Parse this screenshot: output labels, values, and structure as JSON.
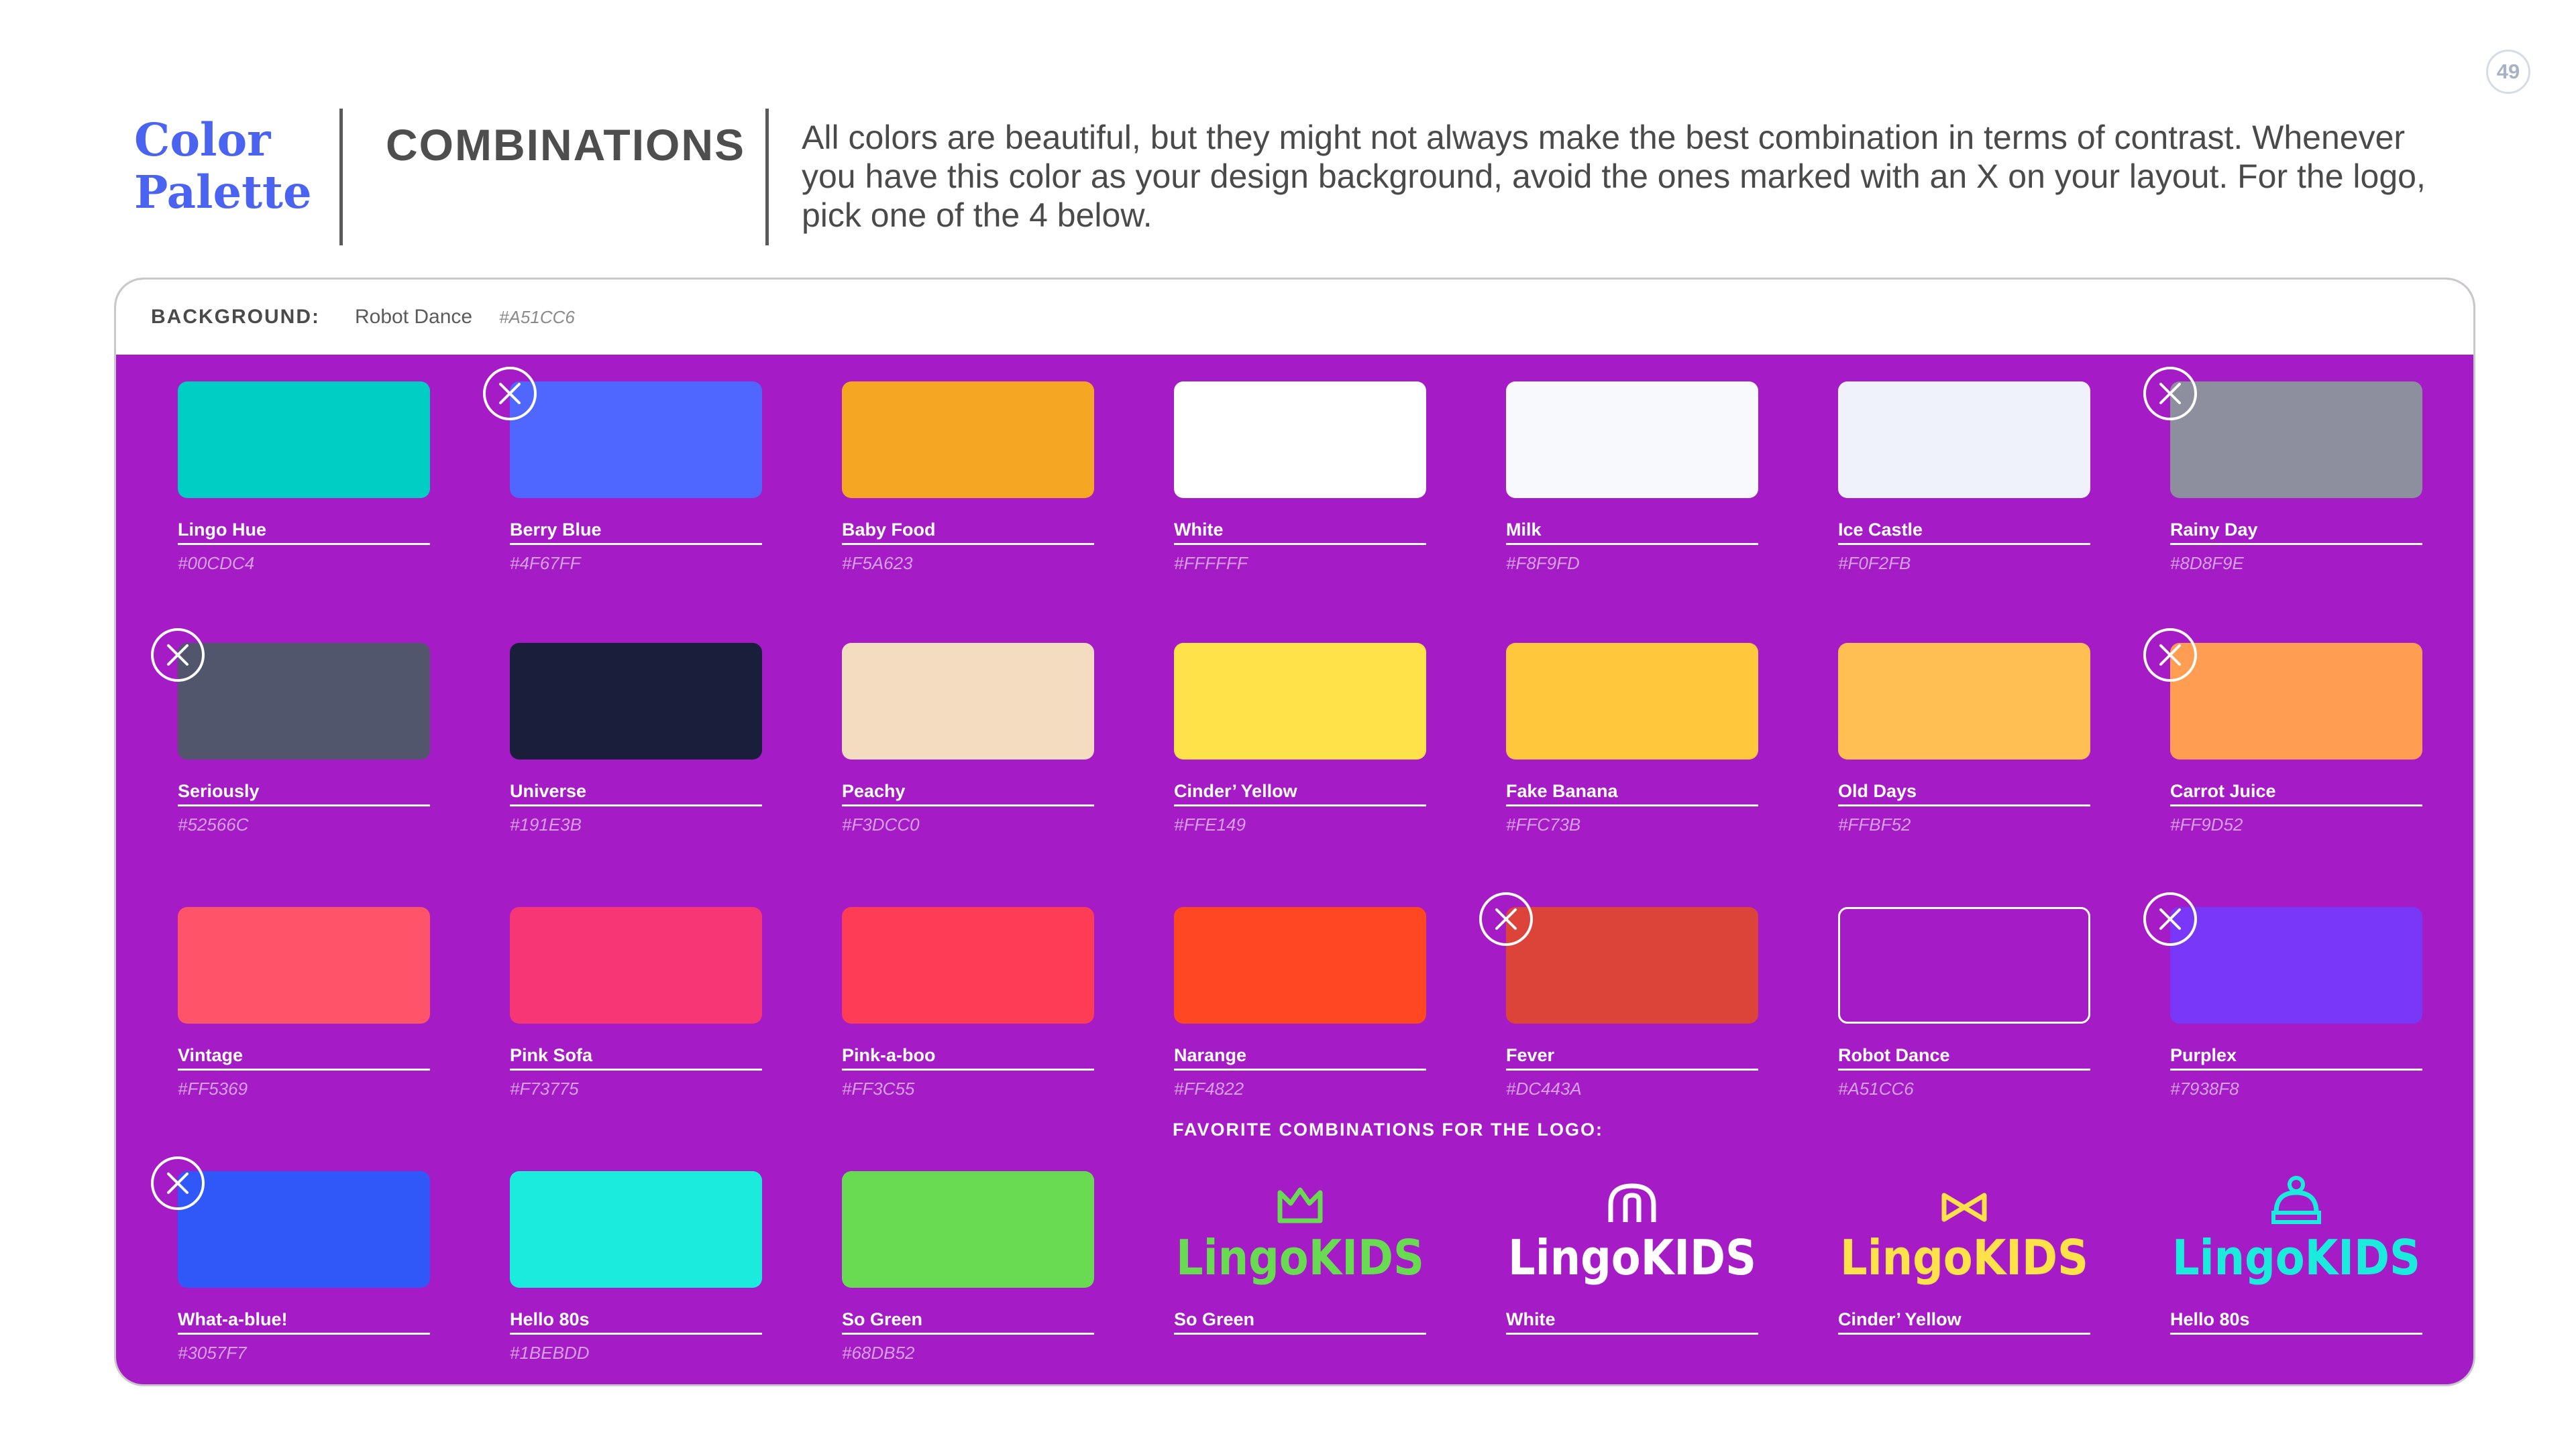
{
  "page_number": "49",
  "section_title": "Color Palette",
  "subtitle": "COMBINATIONS",
  "intro": "All colors are beautiful, but they might not always make the best combination in terms of contrast. Whenever you have this color as your design background, avoid the ones marked with an X on your layout. For the logo, pick one of the 4 below.",
  "background": {
    "label": "BACKGROUND:",
    "name": "Robot Dance",
    "hex": "#A51CC6",
    "color": "#a51cc6"
  },
  "swatches": [
    {
      "name": "Lingo Hue",
      "hex": "#00CDC4",
      "color": "#00cdc4",
      "avoid": false
    },
    {
      "name": "Berry Blue",
      "hex": "#4F67FF",
      "color": "#4f67ff",
      "avoid": true
    },
    {
      "name": "Baby Food",
      "hex": "#F5A623",
      "color": "#f5a623",
      "avoid": false
    },
    {
      "name": "White",
      "hex": "#FFFFFF",
      "color": "#ffffff",
      "avoid": false
    },
    {
      "name": "Milk",
      "hex": "#F8F9FD",
      "color": "#f8f9fd",
      "avoid": false
    },
    {
      "name": "Ice Castle",
      "hex": "#F0F2FB",
      "color": "#f0f2fb",
      "avoid": false
    },
    {
      "name": "Rainy Day",
      "hex": "#8D8F9E",
      "color": "#8d8f9e",
      "avoid": true
    },
    {
      "name": "Seriously",
      "hex": "#52566C",
      "color": "#52566c",
      "avoid": true
    },
    {
      "name": "Universe",
      "hex": "#191E3B",
      "color": "#191e3b",
      "avoid": false
    },
    {
      "name": "Peachy",
      "hex": "#F3DCC0",
      "color": "#f3dcc0",
      "avoid": false
    },
    {
      "name": "Cinder’ Yellow",
      "hex": "#FFE149",
      "color": "#ffe149",
      "avoid": false
    },
    {
      "name": "Fake Banana",
      "hex": "#FFC73B",
      "color": "#ffc73b",
      "avoid": false
    },
    {
      "name": "Old Days",
      "hex": "#FFBF52",
      "color": "#ffbf52",
      "avoid": false
    },
    {
      "name": "Carrot Juice",
      "hex": "#FF9D52",
      "color": "#ff9d52",
      "avoid": true
    },
    {
      "name": "Vintage",
      "hex": "#FF5369",
      "color": "#ff5369",
      "avoid": false
    },
    {
      "name": "Pink Sofa",
      "hex": "#F73775",
      "color": "#f73775",
      "avoid": false
    },
    {
      "name": "Pink-a-boo",
      "hex": "#FF3C55",
      "color": "#ff3c55",
      "avoid": false
    },
    {
      "name": "Narange",
      "hex": "#FF4822",
      "color": "#ff4822",
      "avoid": false
    },
    {
      "name": "Fever",
      "hex": "#DC443A",
      "color": "#dc443a",
      "avoid": true
    },
    {
      "name": "Robot Dance",
      "hex": "#A51CC6",
      "color": "#a51cc6",
      "avoid": false
    },
    {
      "name": "Purplex",
      "hex": "#7938F8",
      "color": "#7938f8",
      "avoid": true
    },
    {
      "name": "What-a-blue!",
      "hex": "#3057F7",
      "color": "#3057f7",
      "avoid": true
    },
    {
      "name": "Hello 80s",
      "hex": "#1BEBDD",
      "color": "#1bebdd",
      "avoid": false
    },
    {
      "name": "So Green",
      "hex": "#68DB52",
      "color": "#68db52",
      "avoid": false
    }
  ],
  "logo_section_label": "FAVORITE COMBINATIONS FOR THE LOGO:",
  "logos": [
    {
      "name": "So Green",
      "color": "#68db52",
      "wordmark": "LingoKIDS",
      "icon": "crown-icon"
    },
    {
      "name": "White",
      "color": "#ffffff",
      "wordmark": "LingoKIDS",
      "icon": "arch-icon"
    },
    {
      "name": "Cinder’ Yellow",
      "color": "#ffe149",
      "wordmark": "LingoKIDS",
      "icon": "bowtie-icon"
    },
    {
      "name": "Hello 80s",
      "color": "#1bebdd",
      "wordmark": "LingoKIDS",
      "icon": "beanie-icon"
    }
  ]
}
